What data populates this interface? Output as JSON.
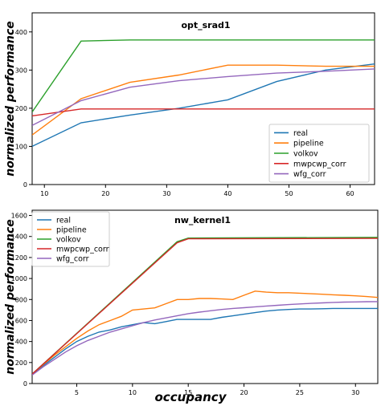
{
  "ylabel": "normalized performance",
  "xlabel": "occupancy",
  "chart_data": [
    {
      "type": "line",
      "title": "opt_srad1",
      "xlabel": "",
      "ylabel": "normalized performance",
      "xlim": [
        8,
        64
      ],
      "ylim": [
        0,
        450
      ],
      "xticks": [
        10,
        20,
        30,
        40,
        50,
        60
      ],
      "yticks": [
        0,
        100,
        200,
        300,
        400
      ],
      "legend_position": "lower right",
      "series": [
        {
          "name": "real",
          "color": "#1f77b4",
          "x": [
            8,
            16,
            24,
            32,
            40,
            48,
            56,
            64
          ],
          "y": [
            100,
            162,
            182,
            200,
            222,
            270,
            300,
            316
          ]
        },
        {
          "name": "pipeline",
          "color": "#ff7f0e",
          "x": [
            8,
            16,
            24,
            32,
            40,
            48,
            56,
            64
          ],
          "y": [
            130,
            225,
            268,
            287,
            313,
            313,
            310,
            310
          ]
        },
        {
          "name": "volkov",
          "color": "#2ca02c",
          "x": [
            8,
            16,
            24,
            32,
            40,
            48,
            56,
            64
          ],
          "y": [
            190,
            376,
            379,
            379,
            379,
            379,
            379,
            379
          ]
        },
        {
          "name": "mwpcwp_corr",
          "color": "#d62728",
          "x": [
            8,
            16,
            24,
            32,
            40,
            48,
            56,
            64
          ],
          "y": [
            180,
            198,
            198,
            198,
            198,
            198,
            198,
            198
          ]
        },
        {
          "name": "wfg_corr",
          "color": "#9467bd",
          "x": [
            8,
            16,
            24,
            32,
            40,
            48,
            56,
            64
          ],
          "y": [
            155,
            220,
            255,
            272,
            283,
            292,
            297,
            303
          ]
        }
      ]
    },
    {
      "type": "line",
      "title": "nw_kernel1",
      "xlabel": "occupancy",
      "ylabel": "normalized performance",
      "xlim": [
        1,
        32
      ],
      "ylim": [
        0,
        1650
      ],
      "xticks": [
        5,
        10,
        15,
        20,
        25,
        30
      ],
      "yticks": [
        0,
        200,
        400,
        600,
        800,
        1000,
        1200,
        1400,
        1600
      ],
      "legend_position": "upper left",
      "series": [
        {
          "name": "real",
          "color": "#1f77b4",
          "x": [
            1,
            2,
            3,
            4,
            5,
            6,
            7,
            8,
            9,
            10,
            11,
            12,
            13,
            14,
            15,
            16,
            17,
            18,
            19,
            20,
            21,
            22,
            23,
            24,
            25,
            26,
            27,
            28,
            29,
            30,
            31,
            32
          ],
          "y": [
            90,
            170,
            250,
            330,
            400,
            450,
            490,
            510,
            540,
            560,
            580,
            570,
            590,
            610,
            610,
            610,
            610,
            630,
            645,
            660,
            675,
            690,
            700,
            705,
            710,
            710,
            712,
            715,
            715,
            715,
            715,
            715
          ]
        },
        {
          "name": "pipeline",
          "color": "#ff7f0e",
          "x": [
            1,
            2,
            3,
            4,
            5,
            6,
            7,
            8,
            9,
            10,
            11,
            12,
            13,
            14,
            15,
            16,
            17,
            18,
            19,
            20,
            21,
            22,
            23,
            24,
            25,
            26,
            27,
            28,
            29,
            30,
            31,
            32
          ],
          "y": [
            90,
            180,
            270,
            350,
            430,
            500,
            560,
            600,
            640,
            700,
            710,
            720,
            760,
            800,
            800,
            810,
            810,
            805,
            800,
            840,
            880,
            870,
            865,
            865,
            860,
            855,
            850,
            845,
            840,
            835,
            828,
            820
          ]
        },
        {
          "name": "volkov",
          "color": "#2ca02c",
          "x": [
            1,
            14,
            15,
            32
          ],
          "y": [
            90,
            1350,
            1385,
            1392
          ]
        },
        {
          "name": "mwpcwp_corr",
          "color": "#d62728",
          "x": [
            1,
            14,
            15,
            32
          ],
          "y": [
            90,
            1340,
            1378,
            1382
          ]
        },
        {
          "name": "wfg_corr",
          "color": "#9467bd",
          "x": [
            1,
            2,
            3,
            4,
            5,
            6,
            7,
            8,
            9,
            10,
            11,
            12,
            13,
            14,
            15,
            16,
            17,
            18,
            19,
            20,
            21,
            22,
            23,
            24,
            25,
            26,
            27,
            28,
            29,
            30,
            31,
            32
          ],
          "y": [
            80,
            160,
            230,
            300,
            360,
            410,
            450,
            490,
            520,
            550,
            580,
            605,
            625,
            645,
            665,
            680,
            693,
            705,
            715,
            722,
            730,
            738,
            745,
            752,
            758,
            763,
            768,
            772,
            775,
            777,
            779,
            780
          ]
        }
      ]
    }
  ]
}
